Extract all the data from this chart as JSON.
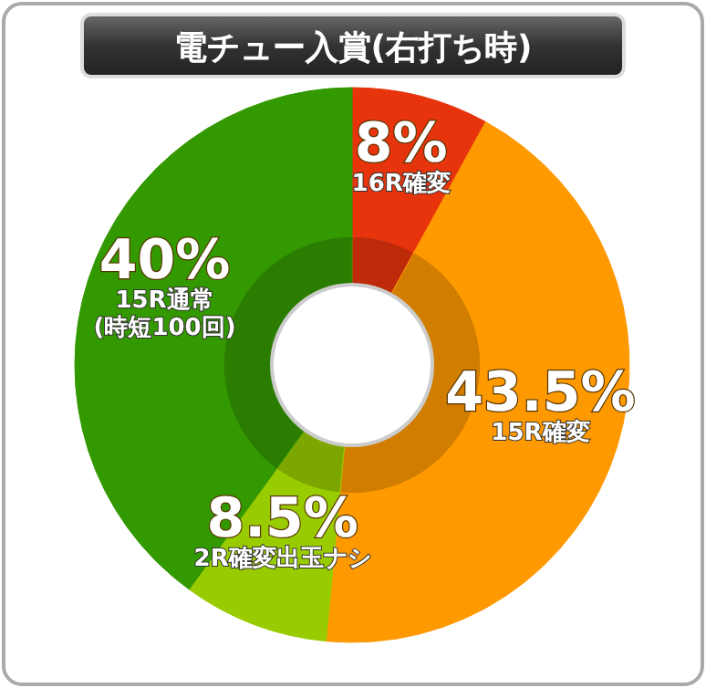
{
  "chart_data": {
    "type": "donut",
    "title": "電チュー入賞(右打ち時)",
    "categories": [
      "16R確変",
      "15R確変",
      "2R確変出玉ナシ",
      "15R通常\n(時短100回)"
    ],
    "values": [
      8,
      43.5,
      8.5,
      40
    ],
    "value_labels": [
      "8%",
      "43.5%",
      "8.5%",
      "40%"
    ],
    "colors": [
      "#e8340c",
      "#ff9900",
      "#99cc00",
      "#339900"
    ]
  }
}
